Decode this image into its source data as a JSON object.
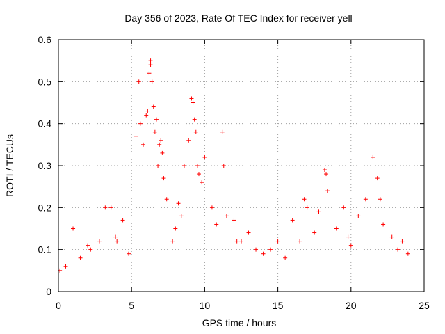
{
  "chart_data": {
    "type": "scatter",
    "title": "Day 356 of 2023, Rate Of TEC Index for receiver yell",
    "xlabel": "GPS time / hours",
    "ylabel": "ROTI / TECUs",
    "xlim": [
      0,
      25
    ],
    "ylim": [
      0,
      0.6
    ],
    "xticks": [
      0,
      5,
      10,
      15,
      20,
      25
    ],
    "yticks": [
      0,
      0.1,
      0.2,
      0.3,
      0.4,
      0.5,
      0.6
    ],
    "xtick_labels": [
      "0",
      "5",
      "10",
      "15",
      "20",
      "25"
    ],
    "ytick_labels": [
      "0",
      "0.1",
      "0.2",
      "0.3",
      "0.4",
      "0.5",
      "0.6"
    ],
    "grid": true,
    "marker": "+",
    "color": "#ff0000",
    "series": [
      {
        "name": "ROTI",
        "x": [
          3.2,
          3.6,
          4.4,
          5.3,
          5.5,
          5.6,
          5.8,
          6.0,
          6.1,
          6.2,
          6.3,
          6.3,
          6.4,
          6.5,
          6.6,
          6.7,
          6.8,
          6.9,
          7.0,
          7.1,
          7.2,
          7.4,
          8.2,
          8.6,
          8.9,
          9.1,
          9.2,
          9.3,
          9.4,
          9.5,
          9.6,
          9.8,
          10.0,
          10.5,
          11.2,
          11.3,
          11.5,
          12.0,
          13.0,
          15.0,
          16.0,
          16.8,
          17.0,
          17.8,
          18.2,
          18.3,
          18.4,
          19.5,
          20.5,
          21.0,
          21.5,
          21.8,
          22.0,
          22.2,
          23.5,
          23.9,
          1.0,
          2.2,
          0.1,
          0.5,
          1.5,
          2.8,
          3.9,
          4.8,
          7.8,
          8.0,
          8.4,
          10.8,
          12.5,
          13.5,
          14.0,
          14.5,
          15.5,
          16.5,
          17.5,
          19.0,
          20.0,
          22.8,
          23.2,
          2.0,
          4.0,
          12.2,
          19.8
        ],
        "y": [
          0.2,
          0.2,
          0.17,
          0.37,
          0.5,
          0.4,
          0.35,
          0.42,
          0.43,
          0.52,
          0.54,
          0.55,
          0.5,
          0.44,
          0.38,
          0.41,
          0.3,
          0.35,
          0.36,
          0.33,
          0.27,
          0.22,
          0.21,
          0.3,
          0.36,
          0.46,
          0.45,
          0.41,
          0.38,
          0.3,
          0.28,
          0.26,
          0.32,
          0.2,
          0.38,
          0.3,
          0.18,
          0.17,
          0.14,
          0.12,
          0.17,
          0.22,
          0.2,
          0.19,
          0.29,
          0.28,
          0.24,
          0.2,
          0.18,
          0.22,
          0.32,
          0.27,
          0.22,
          0.16,
          0.12,
          0.09,
          0.15,
          0.1,
          0.05,
          0.06,
          0.08,
          0.12,
          0.13,
          0.09,
          0.12,
          0.15,
          0.18,
          0.16,
          0.12,
          0.1,
          0.09,
          0.1,
          0.08,
          0.12,
          0.14,
          0.15,
          0.11,
          0.13,
          0.1,
          0.11,
          0.12,
          0.12,
          0.13
        ]
      }
    ]
  }
}
